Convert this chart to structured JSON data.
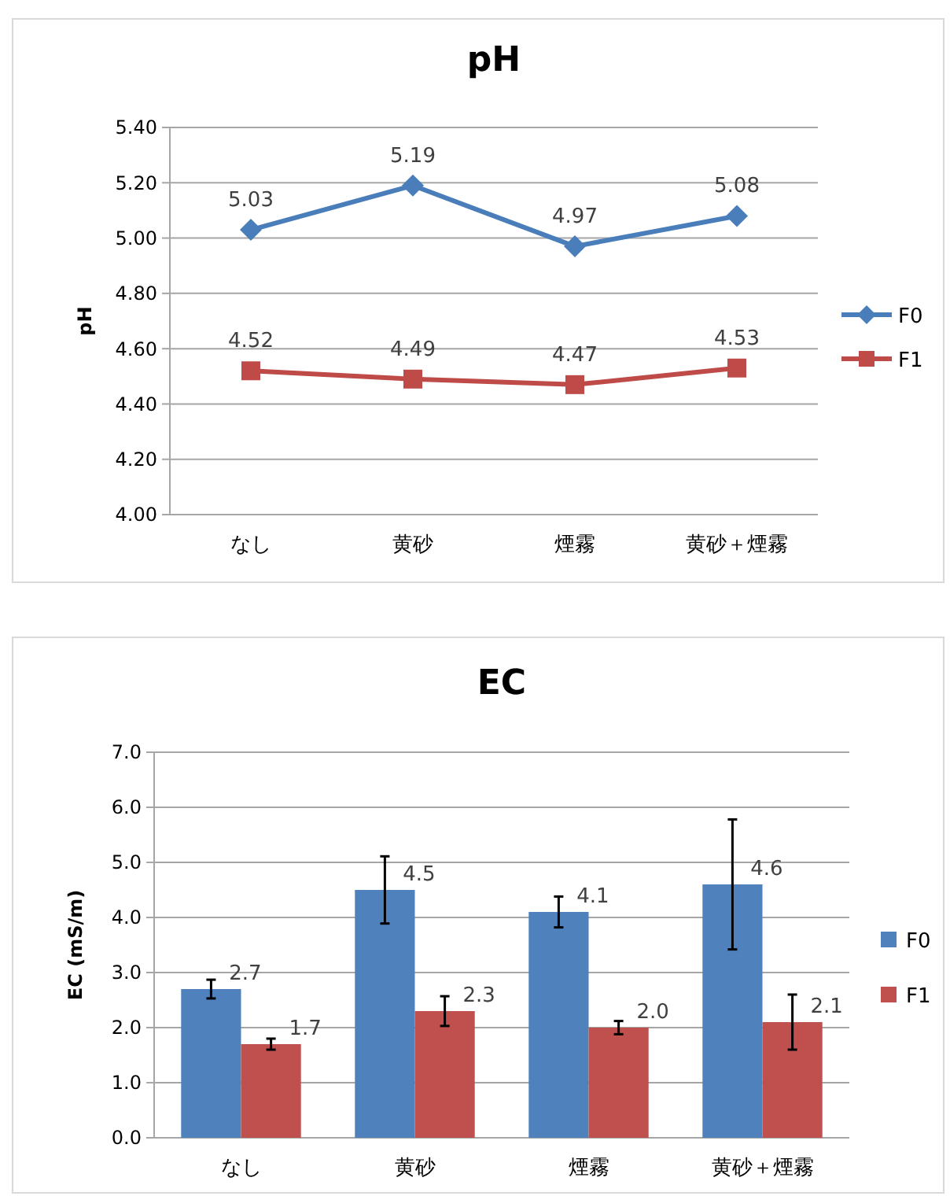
{
  "chart_data": [
    {
      "type": "line",
      "title": "pH",
      "ylabel": "pH",
      "categories": [
        "なし",
        "黄砂",
        "煙霧",
        "黄砂＋煙霧"
      ],
      "series": [
        {
          "name": "F0",
          "color": "#4a7ebb",
          "marker": "diamond",
          "values": [
            5.03,
            5.19,
            4.97,
            5.08
          ]
        },
        {
          "name": "F1",
          "color": "#be4b48",
          "marker": "square",
          "values": [
            4.52,
            4.49,
            4.47,
            4.53
          ]
        }
      ],
      "ylim": [
        4.0,
        5.4
      ],
      "yticks": [
        {
          "value": 4.0,
          "label": "4.00"
        },
        {
          "value": 4.2,
          "label": "4.20"
        },
        {
          "value": 4.4,
          "label": "4.40"
        },
        {
          "value": 4.6,
          "label": "4.60"
        },
        {
          "value": 4.8,
          "label": "4.80"
        },
        {
          "value": 5.0,
          "label": "5.00"
        },
        {
          "value": 5.2,
          "label": "5.20"
        },
        {
          "value": 5.4,
          "label": "5.40"
        }
      ],
      "grid": "y",
      "legend": "right",
      "data_labels": true,
      "line_style": "solid"
    },
    {
      "type": "bar",
      "title": "EC",
      "ylabel": "EC (mS/m)",
      "categories": [
        "なし",
        "黄砂",
        "煙霧",
        "黄砂＋煙霧"
      ],
      "series": [
        {
          "name": "F0",
          "color": "#4f81bd",
          "values": [
            2.7,
            4.5,
            4.1,
            4.6
          ],
          "value_labels": [
            "2.7",
            "4.5",
            "4.1",
            "4.6"
          ],
          "errors": [
            0.17,
            0.61,
            0.28,
            1.18
          ]
        },
        {
          "name": "F1",
          "color": "#c0504d",
          "values": [
            1.7,
            2.3,
            2.0,
            2.1
          ],
          "value_labels": [
            "1.7",
            "2.3",
            "2.0",
            "2.1"
          ],
          "errors": [
            0.1,
            0.27,
            0.12,
            0.5
          ]
        }
      ],
      "ylim": [
        0,
        7
      ],
      "yticks": [
        {
          "value": 0,
          "label": "0.0"
        },
        {
          "value": 1,
          "label": "1.0"
        },
        {
          "value": 2,
          "label": "2.0"
        },
        {
          "value": 3,
          "label": "3.0"
        },
        {
          "value": 4,
          "label": "4.0"
        },
        {
          "value": 5,
          "label": "5.0"
        },
        {
          "value": 6,
          "label": "6.0"
        },
        {
          "value": 7,
          "label": "7.0"
        }
      ],
      "grid": "y",
      "legend": "right"
    }
  ]
}
